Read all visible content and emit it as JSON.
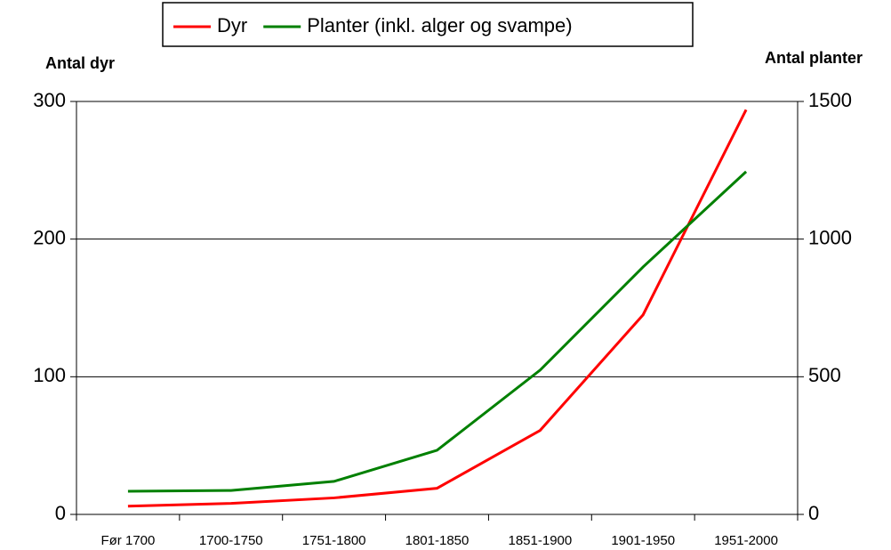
{
  "chart_data": {
    "type": "line",
    "categories": [
      "Før 1700",
      "1700-1750",
      "1751-1800",
      "1801-1850",
      "1851-1900",
      "1901-1950",
      "1951-2000"
    ],
    "series": [
      {
        "name": "Dyr",
        "color": "#ff0000",
        "values": [
          6,
          8,
          12,
          19,
          61,
          145,
          294
        ]
      },
      {
        "name": "Planter (inkl. alger og svampe)",
        "color": "#008000",
        "axis": "y2",
        "values": [
          84,
          87,
          120,
          233,
          524,
          899,
          1245
        ]
      }
    ],
    "y_label": "Antal dyr",
    "y2_label": "Antal planter",
    "ylim": [
      0,
      300
    ],
    "yticks": [
      0,
      100,
      200,
      300
    ],
    "y2lim": [
      0,
      1500
    ],
    "y2ticks": [
      0,
      500,
      1000,
      1500
    ],
    "grid": true,
    "legend": "top"
  }
}
